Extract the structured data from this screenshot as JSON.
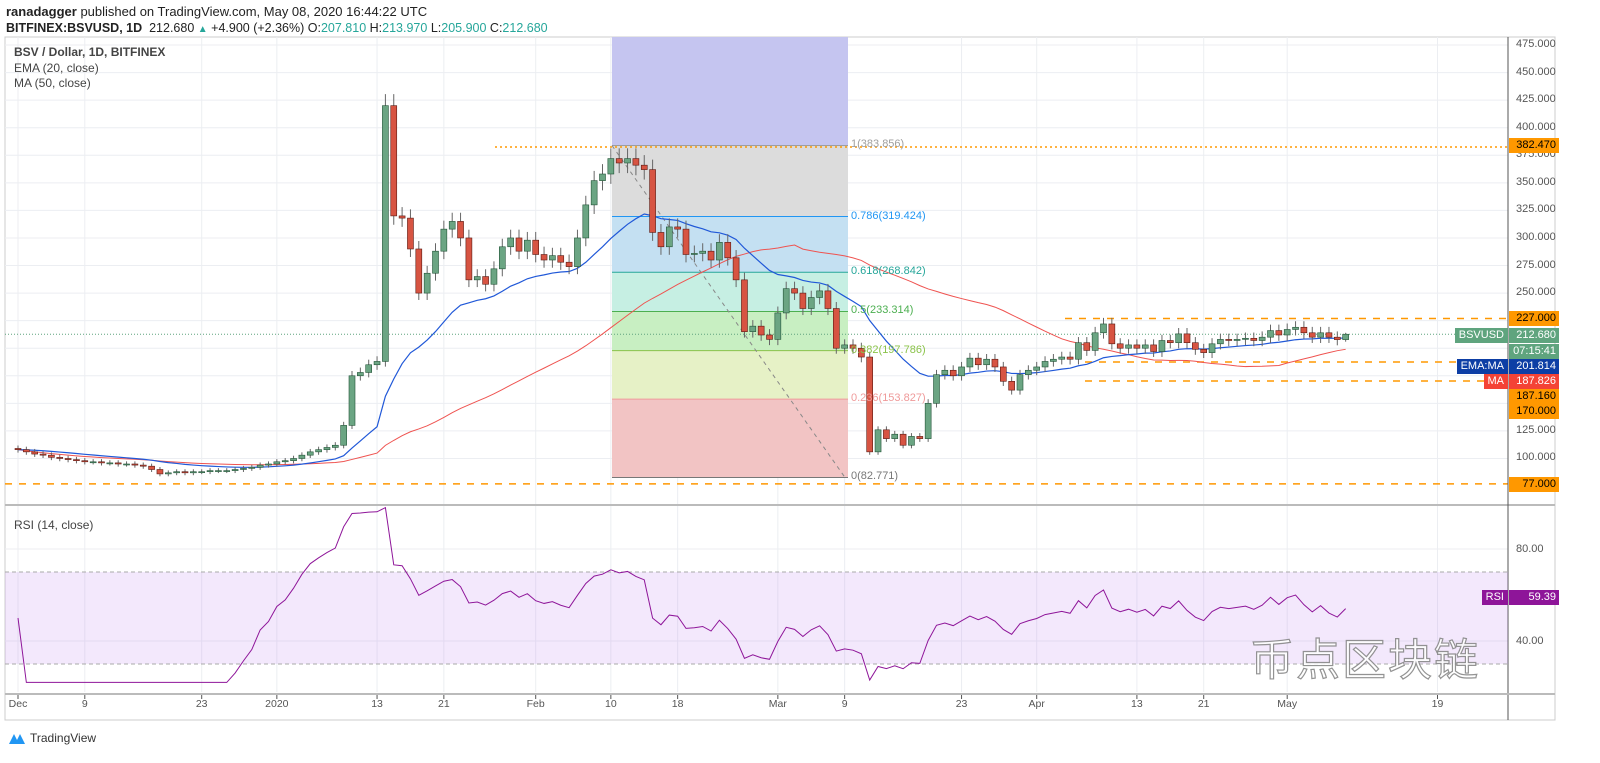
{
  "header": {
    "publisher": "ranadagger",
    "published_text": "published on TradingView.com, May 08, 2020 16:44:22 UTC",
    "symbol": "BITFINEX:BSVUSD, 1D",
    "last": "212.680",
    "change": "+4.900 (+2.36%)",
    "o_label": "O:",
    "o": "207.810",
    "h_label": "H:",
    "h": "213.970",
    "l_label": "L:",
    "l": "205.900",
    "c_label": "C:",
    "c": "212.680"
  },
  "legend": {
    "title": "BSV / Dollar, 1D, BITFINEX",
    "ema": "EMA (20, close)",
    "ma": "MA (50, close)",
    "rsi": "RSI (14, close)"
  },
  "colors": {
    "up": "#6ba583",
    "down": "#d75442",
    "ema": "#2058d8",
    "ma": "#ef5350",
    "rsi": "#8e1599",
    "levels": "#ff9800"
  },
  "price_axis": {
    "ticks": [
      "475.000",
      "450.000",
      "425.000",
      "400.000",
      "375.000",
      "350.000",
      "325.000",
      "300.000",
      "275.000",
      "250.000",
      "125.000",
      "100.000"
    ],
    "tick_values": [
      475,
      450,
      425,
      400,
      375,
      350,
      325,
      300,
      275,
      250,
      125,
      100
    ],
    "labels": {
      "level_382": "382.470",
      "level_227": "227.000",
      "symbol_tag": "BSVUSD",
      "last_price": "212.680",
      "countdown": "07:15:41",
      "ema_tag": "EMA:MA",
      "ema_value": "201.814",
      "ma_tag": "MA",
      "ma_value": "187.826",
      "level_187": "187.160",
      "level_170": "170.000",
      "level_77": "77.000"
    }
  },
  "rsi_axis": {
    "ticks": [
      "80.00",
      "40.00"
    ],
    "tag": "RSI",
    "value": "59.39"
  },
  "date_axis": [
    "Dec",
    "9",
    "23",
    "2020",
    "13",
    "21",
    "Feb",
    "10",
    "18",
    "Mar",
    "9",
    "23",
    "Apr",
    "13",
    "21",
    "May",
    "19"
  ],
  "fib": [
    {
      "label": "1(383.856)",
      "value": 383.856
    },
    {
      "label": "0.786(319.424)",
      "value": 319.424
    },
    {
      "label": "0.618(268.842)",
      "value": 268.842
    },
    {
      "label": "0.5(233.314)",
      "value": 233.314
    },
    {
      "label": "0.382(197.786)",
      "value": 197.786
    },
    {
      "label": "0.236(153.827)",
      "value": 153.827
    },
    {
      "label": "0(82.771)",
      "value": 82.771
    }
  ],
  "chart_data": {
    "type": "candlestick",
    "title": "BSV / Dollar, 1D, BITFINEX",
    "start_date": "2019-12-01",
    "end_date": "2020-05-08",
    "ylim": [
      77,
      475
    ],
    "price_scale": "linear",
    "closes": [
      108,
      106,
      104,
      103,
      101,
      100,
      99,
      98,
      97,
      97,
      96,
      96,
      95,
      95,
      94,
      93,
      90,
      86,
      87,
      88,
      87,
      88,
      88,
      89,
      89,
      89,
      90,
      91,
      92,
      94,
      95,
      97,
      98,
      100,
      103,
      106,
      108,
      110,
      112,
      130,
      175,
      178,
      185,
      188,
      420,
      320,
      318,
      290,
      250,
      268,
      288,
      308,
      315,
      300,
      262,
      265,
      258,
      272,
      292,
      300,
      288,
      298,
      285,
      280,
      284,
      278,
      274,
      300,
      330,
      352,
      358,
      372,
      368,
      372,
      366,
      362,
      305,
      292,
      310,
      308,
      285,
      286,
      288,
      280,
      296,
      282,
      262,
      215,
      220,
      212,
      208,
      232,
      254,
      250,
      236,
      246,
      252,
      236,
      200,
      203,
      200,
      192,
      106,
      126,
      118,
      122,
      112,
      120,
      118,
      150,
      176,
      180,
      175,
      183,
      191,
      185,
      190,
      183,
      170,
      162,
      176,
      180,
      183,
      188,
      190,
      192,
      190,
      205,
      198,
      214,
      222,
      204,
      200,
      203,
      200,
      203,
      197,
      207,
      205,
      213,
      205,
      199,
      196,
      204,
      208,
      207,
      208,
      209,
      207,
      210,
      216,
      212,
      217,
      219,
      214,
      210,
      214,
      210,
      207.81,
      212.68
    ],
    "last_candle": {
      "open": 207.81,
      "high": 213.97,
      "low": 205.9,
      "close": 212.68
    },
    "horizontal_levels": [
      382.47,
      227,
      187.16,
      170,
      77
    ],
    "indicators": {
      "ema_period": 20,
      "ma_period": 50,
      "rsi_period": 14,
      "rsi_band": [
        30,
        70
      ],
      "rsi_ylim": [
        20,
        100
      ]
    },
    "grid": true
  },
  "watermark": "币点区块链",
  "footer": {
    "brand": "TradingView"
  }
}
